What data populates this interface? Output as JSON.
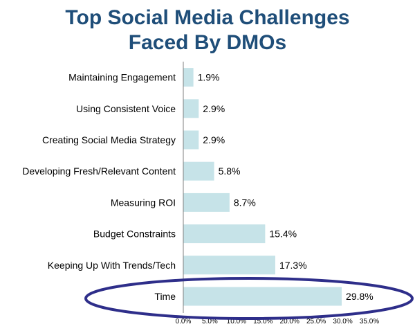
{
  "chart_data": {
    "type": "bar",
    "orientation": "horizontal",
    "title": [
      "Top Social Media Challenges",
      "Faced By DMOs"
    ],
    "categories": [
      "Maintaining Engagement",
      "Using Consistent Voice",
      "Creating Social Media Strategy",
      "Developing Fresh/Relevant Content",
      "Measuring ROI",
      "Budget Constraints",
      "Keeping Up With Trends/Tech",
      "Time"
    ],
    "values": [
      1.9,
      2.9,
      2.9,
      5.8,
      8.7,
      15.4,
      17.3,
      29.8
    ],
    "value_labels": [
      "1.9%",
      "2.9%",
      "2.9%",
      "5.8%",
      "8.7%",
      "15.4%",
      "17.3%",
      "29.8%"
    ],
    "xlim": [
      0,
      35
    ],
    "x_ticks": [
      "0.0%",
      "5.0%",
      "10.0%",
      "15.0%",
      "20.0%",
      "25.0%",
      "30.0%",
      "35.0%"
    ],
    "bar_color": "#c6e3e8",
    "highlight_color": "#2e2e8a",
    "highlighted_category": "Time",
    "grid": false
  }
}
